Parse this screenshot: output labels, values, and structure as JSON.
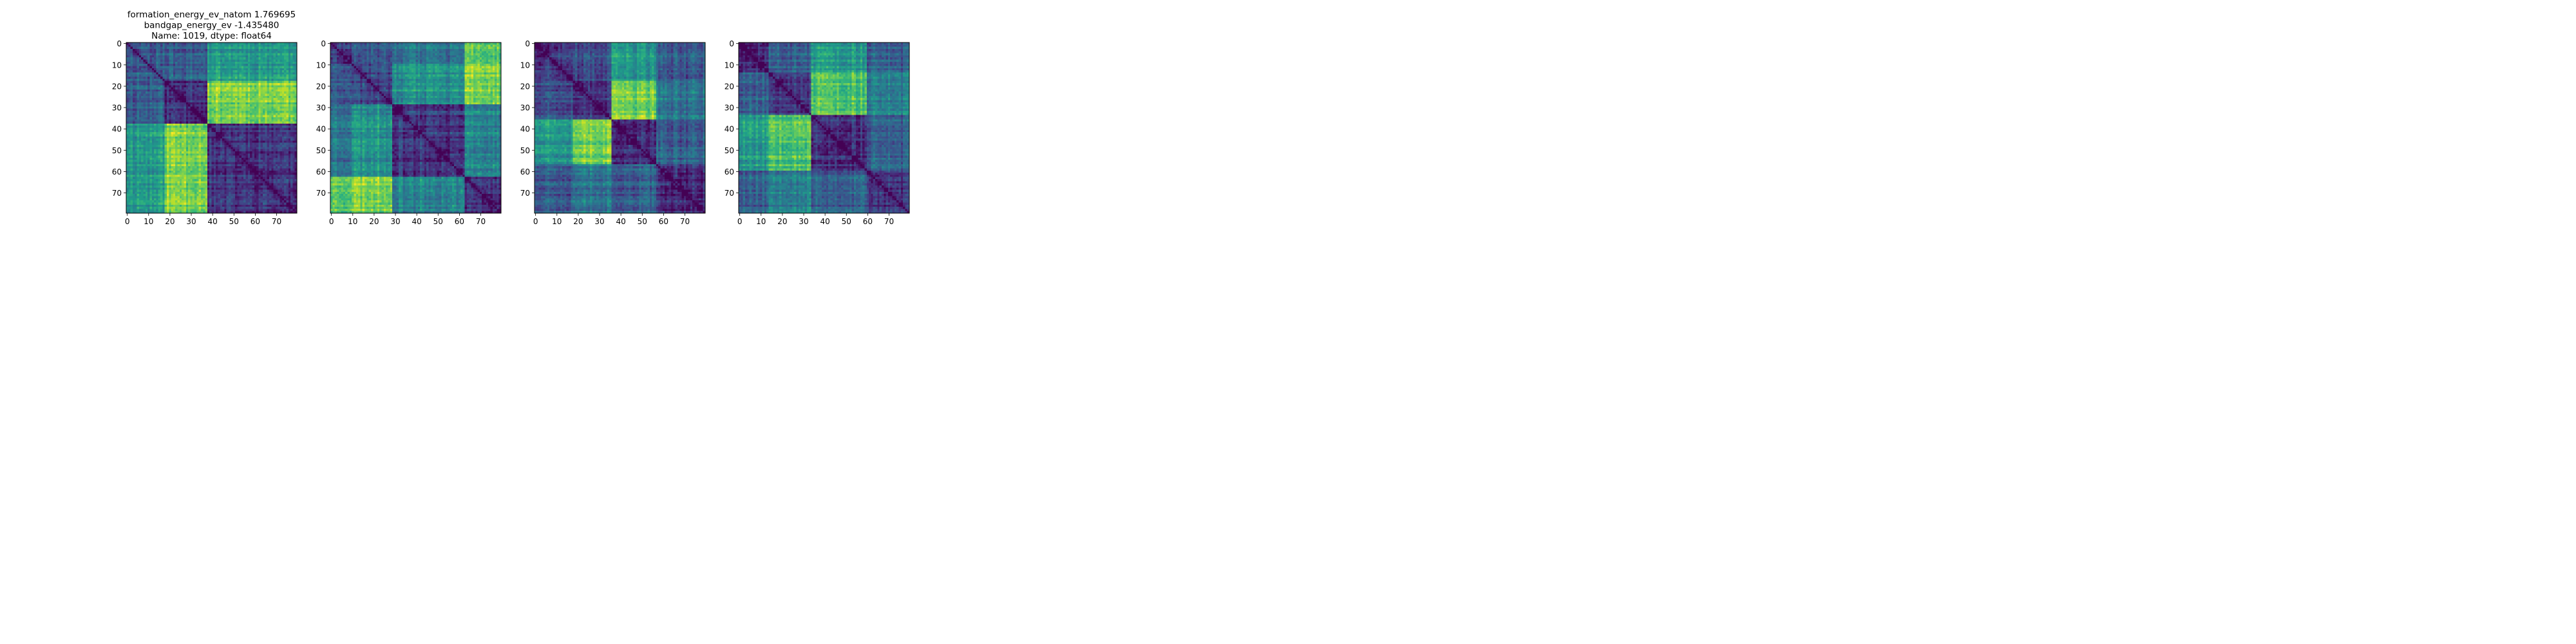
{
  "chart_data": [
    {
      "type": "heatmap",
      "title_lines": [
        "formation_energy_ev_natom    1.769695",
        "bandgap_energy_ev          -1.435480",
        "Name: 1019, dtype: float64"
      ],
      "size": 80,
      "blocks": [
        0,
        18,
        38,
        80
      ],
      "block_levels": [
        [
          0.3,
          0.3,
          0.55
        ],
        [
          0.3,
          0.15,
          0.82
        ],
        [
          0.55,
          0.82,
          0.15
        ]
      ],
      "colormap": "viridis",
      "xlim": [
        0,
        80
      ],
      "ylim": [
        80,
        0
      ],
      "xticks": [
        0,
        10,
        20,
        30,
        40,
        50,
        60,
        70
      ],
      "yticks": [
        0,
        10,
        20,
        30,
        40,
        50,
        60,
        70
      ],
      "seed": 11
    },
    {
      "type": "heatmap",
      "title_lines": [],
      "size": 80,
      "blocks": [
        0,
        10,
        29,
        63,
        80
      ],
      "block_levels": [
        [
          0.2,
          0.3,
          0.4,
          0.75
        ],
        [
          0.3,
          0.22,
          0.5,
          0.8
        ],
        [
          0.4,
          0.5,
          0.15,
          0.45
        ],
        [
          0.75,
          0.8,
          0.45,
          0.15
        ]
      ],
      "colormap": "viridis",
      "xlim": [
        0,
        80
      ],
      "ylim": [
        80,
        0
      ],
      "xticks": [
        0,
        10,
        20,
        30,
        40,
        50,
        60,
        70
      ],
      "yticks": [
        0,
        10,
        20,
        30,
        40,
        50,
        60,
        70
      ],
      "seed": 23
    },
    {
      "type": "heatmap",
      "title_lines": [],
      "size": 80,
      "blocks": [
        0,
        18,
        36,
        57,
        80
      ],
      "block_levels": [
        [
          0.15,
          0.25,
          0.55,
          0.3
        ],
        [
          0.25,
          0.15,
          0.8,
          0.4
        ],
        [
          0.55,
          0.8,
          0.15,
          0.3
        ],
        [
          0.3,
          0.4,
          0.3,
          0.12
        ]
      ],
      "colormap": "viridis",
      "xlim": [
        0,
        80
      ],
      "ylim": [
        80,
        0
      ],
      "xticks": [
        0,
        10,
        20,
        30,
        40,
        50,
        60,
        70
      ],
      "yticks": [
        0,
        10,
        20,
        30,
        40,
        50,
        60,
        70
      ],
      "seed": 37
    },
    {
      "type": "heatmap",
      "title_lines": [],
      "size": 80,
      "blocks": [
        0,
        14,
        34,
        60,
        80
      ],
      "block_levels": [
        [
          0.15,
          0.3,
          0.55,
          0.3
        ],
        [
          0.3,
          0.2,
          0.75,
          0.45
        ],
        [
          0.55,
          0.75,
          0.15,
          0.3
        ],
        [
          0.3,
          0.45,
          0.3,
          0.15
        ]
      ],
      "colormap": "viridis",
      "xlim": [
        0,
        80
      ],
      "ylim": [
        80,
        0
      ],
      "xticks": [
        0,
        10,
        20,
        30,
        40,
        50,
        60,
        70
      ],
      "yticks": [
        0,
        10,
        20,
        30,
        40,
        50,
        60,
        70
      ],
      "seed": 53
    }
  ]
}
